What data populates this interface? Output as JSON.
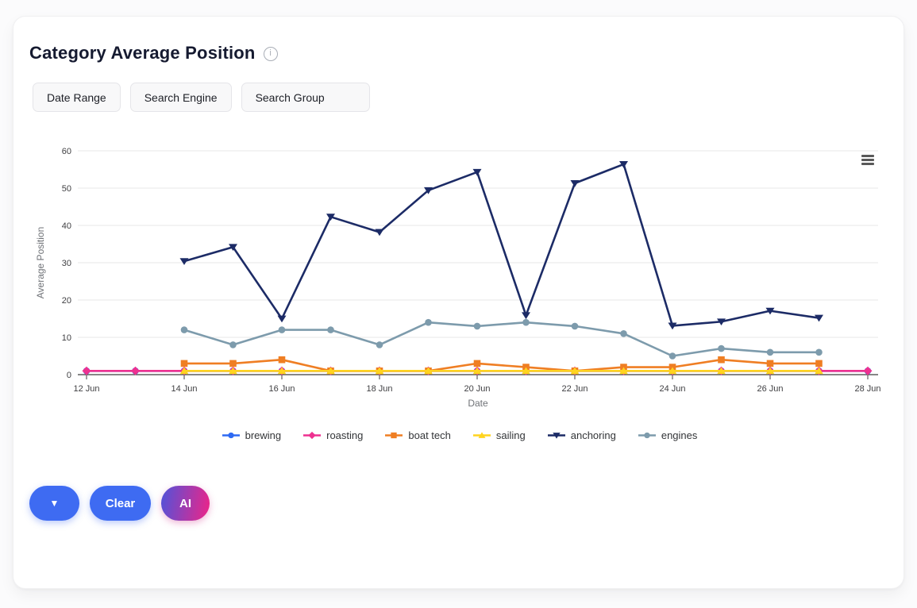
{
  "header": {
    "title": "Category Average Position",
    "info_glyph": "i",
    "info_icon": "info-icon"
  },
  "filters": [
    {
      "label": "Date Range"
    },
    {
      "label": "Search Engine"
    },
    {
      "label": "Search Group"
    }
  ],
  "chart_menu_icon": "hamburger-menu-icon",
  "actions": {
    "dropdown_glyph": "▼",
    "dropdown_icon": "triangle-down-icon",
    "clear_label": "Clear",
    "ai_label": "AI"
  },
  "colors": {
    "button_blue": "#3e6bf2",
    "ai_gradient_start": "#5053da",
    "ai_gradient_end": "#ef2487",
    "axis_text": "#3f3f42",
    "gridline": "#e7e7e7"
  },
  "chart_data": {
    "type": "line",
    "title": "",
    "xlabel": "Date",
    "ylabel": "Average Position",
    "ylim": [
      0,
      60
    ],
    "yticks": [
      0,
      10,
      20,
      30,
      40,
      50,
      60
    ],
    "grid": true,
    "legend_position": "bottom",
    "x_tick_every": 2,
    "categories": [
      "12 Jun",
      "13 Jun",
      "14 Jun",
      "15 Jun",
      "16 Jun",
      "17 Jun",
      "18 Jun",
      "19 Jun",
      "20 Jun",
      "21 Jun",
      "22 Jun",
      "23 Jun",
      "24 Jun",
      "25 Jun",
      "26 Jun",
      "27 Jun",
      "28 Jun"
    ],
    "series": [
      {
        "name": "brewing",
        "color": "#2e6af3",
        "marker": "circle",
        "x_start_index": 0,
        "values": [
          1,
          1,
          1,
          1,
          1,
          1,
          1,
          1,
          1,
          1,
          1,
          1,
          1,
          1,
          1,
          1,
          1
        ]
      },
      {
        "name": "roasting",
        "color": "#ee3190",
        "marker": "diamond",
        "x_start_index": 0,
        "values": [
          1,
          1,
          1,
          1,
          1,
          1,
          1,
          1,
          1,
          1,
          1,
          1,
          1,
          1,
          1,
          1,
          1
        ]
      },
      {
        "name": "boat tech",
        "color": "#ef7e23",
        "marker": "square",
        "x_start_index": 2,
        "values": [
          3,
          3,
          4,
          1,
          1,
          1,
          3,
          2,
          1,
          2,
          2,
          4,
          3,
          3
        ]
      },
      {
        "name": "sailing",
        "color": "#ffd41f",
        "marker": "triangle-up",
        "x_start_index": 2,
        "values": [
          1,
          1,
          1,
          1,
          1,
          1,
          1,
          1,
          1,
          1,
          1,
          1,
          1,
          1
        ]
      },
      {
        "name": "anchoring",
        "color": "#1c2b66",
        "marker": "triangle-down",
        "x_start_index": 2,
        "values": [
          30.4,
          34.2,
          15,
          42.3,
          38.2,
          49.4,
          54.3,
          15.9,
          51.3,
          56.4,
          13.1,
          14.2,
          17.1,
          15.2
        ]
      },
      {
        "name": "engines",
        "color": "#7d9bac",
        "marker": "circle",
        "x_start_index": 2,
        "values": [
          12,
          8,
          12,
          12,
          8,
          14,
          13,
          14,
          13,
          11,
          5,
          7,
          6,
          6
        ]
      }
    ]
  }
}
